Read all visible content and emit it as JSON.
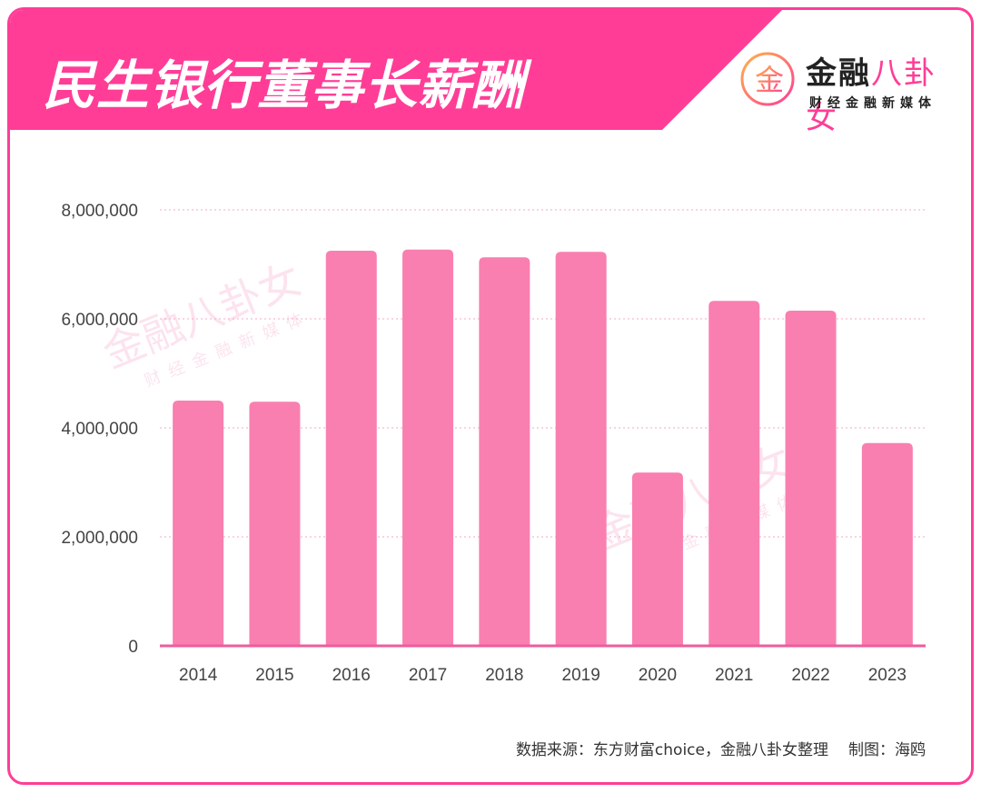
{
  "header": {
    "title": "民生银行董事长薪酬",
    "brand_name_part1": "金融",
    "brand_name_part2": "八卦女",
    "brand_subtitle": "财经金融新媒体",
    "logo_glyph": "金"
  },
  "colors": {
    "accent": "#ff3d97",
    "bar": "#f97fb0",
    "gridline": "#f3a8c8",
    "axis": "#ee5c9c"
  },
  "chart_data": {
    "type": "bar",
    "title": "民生银行董事长薪酬",
    "xlabel": "",
    "ylabel": "",
    "categories": [
      "2014",
      "2015",
      "2016",
      "2017",
      "2018",
      "2019",
      "2020",
      "2021",
      "2022",
      "2023"
    ],
    "values": [
      4500000,
      4480000,
      7250000,
      7270000,
      7130000,
      7230000,
      3180000,
      6330000,
      6150000,
      3720000
    ],
    "ylim": [
      0,
      8000000
    ],
    "yticks": [
      0,
      2000000,
      4000000,
      6000000,
      8000000
    ],
    "ytick_labels": [
      "0",
      "2,000,000",
      "4,000,000",
      "6,000,000",
      "8,000,000"
    ],
    "grid": true,
    "legend": "none"
  },
  "footer": {
    "source": "数据来源：东方财富choice，金融八卦女整理",
    "author": "制图：海鸥"
  },
  "watermarks": [
    "金融八卦女",
    "财经金融新媒体"
  ]
}
